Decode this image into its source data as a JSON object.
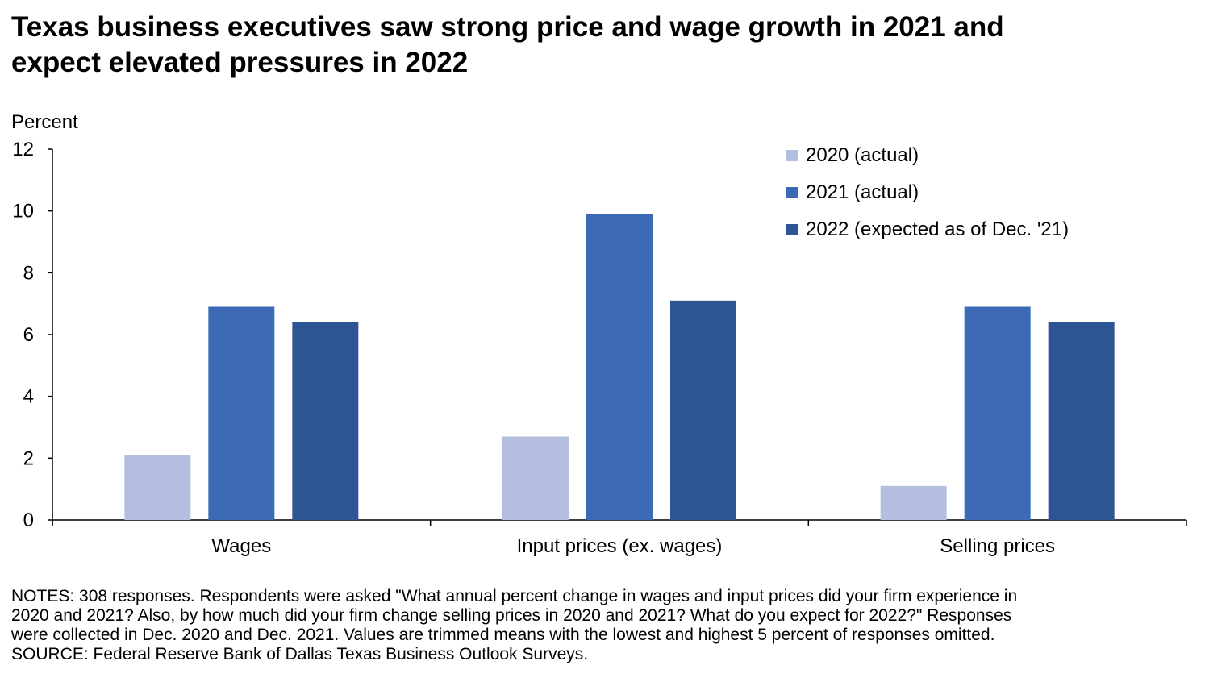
{
  "title_lines": [
    "Texas business executives saw strong price and wage growth in 2021 and",
    "expect elevated pressures in 2022"
  ],
  "notes_lines": [
    "NOTES: 308 responses. Respondents were asked \"What annual percent change in wages and input prices did your firm experience in",
    "2020 and 2021? Also, by how much did your firm change selling prices in 2020 and 2021? What do you expect for 2022?\" Responses",
    "were collected in Dec. 2020 and Dec. 2021. Values are trimmed means with the lowest and highest 5 percent of responses omitted.",
    "SOURCE: Federal Reserve Bank of Dallas Texas Business Outlook Surveys."
  ],
  "chart_data": {
    "type": "bar",
    "title": "Texas business executives saw strong price and wage growth in 2021 and expect elevated pressures in 2022",
    "ylabel": "Percent",
    "xlabel": "",
    "ylim": [
      0,
      12
    ],
    "yticks": [
      0,
      2,
      4,
      6,
      8,
      10,
      12
    ],
    "grid": false,
    "legend_position": "top-right",
    "categories": [
      "Wages",
      "Input prices (ex. wages)",
      "Selling prices"
    ],
    "series": [
      {
        "name": "2020 (actual)",
        "color": "#b4bfdf",
        "values": [
          2.1,
          2.7,
          1.1
        ]
      },
      {
        "name": "2021 (actual)",
        "color": "#3d6ab5",
        "values": [
          6.9,
          9.9,
          6.9
        ]
      },
      {
        "name": "2022 (expected as of Dec. '21)",
        "color": "#2e5593",
        "values": [
          6.4,
          7.1,
          6.4
        ]
      }
    ]
  }
}
